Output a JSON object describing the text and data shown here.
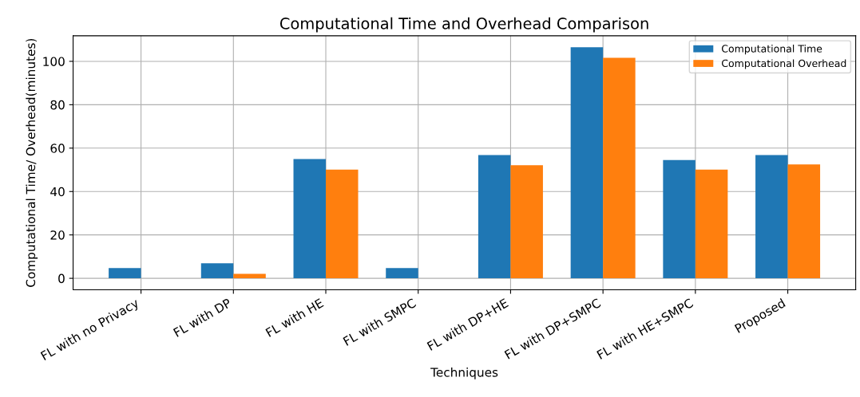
{
  "chart_data": {
    "type": "bar",
    "title": "Computational Time and Overhead Comparison",
    "xlabel": "Techniques",
    "ylabel": "Computational Time/ Overhead(minutes)",
    "categories": [
      "FL with no Privacy",
      "FL with DP",
      "FL with HE",
      "FL with SMPC",
      "FL with DP+HE",
      "FL with DP+SMPC",
      "FL with HE+SMPC",
      "Proposed"
    ],
    "series": [
      {
        "name": "Computational Time",
        "color": "#1f77b4",
        "values": [
          4.7,
          6.9,
          55.0,
          4.7,
          56.8,
          106.5,
          54.5,
          56.8
        ]
      },
      {
        "name": "Computational Overhead",
        "color": "#ff7f0e",
        "values": [
          0,
          2.1,
          50.1,
          0,
          52.1,
          101.6,
          50.1,
          52.5
        ]
      }
    ],
    "ylim": [
      -5.3,
      111.8
    ],
    "yticks": [
      0,
      20,
      40,
      60,
      80,
      100
    ],
    "grid": true,
    "legend": "top right"
  }
}
